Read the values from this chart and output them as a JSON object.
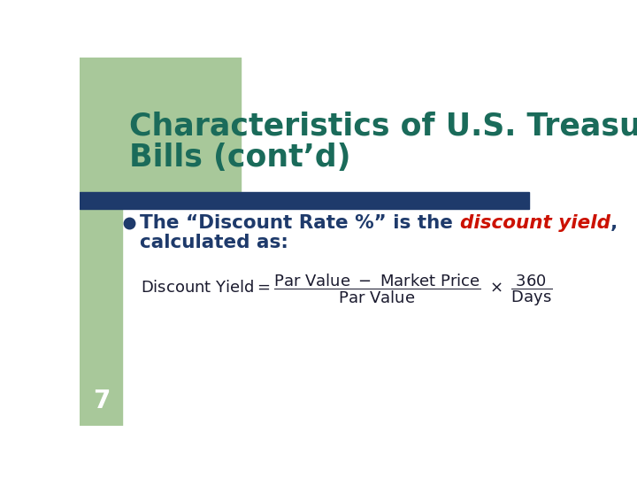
{
  "bg_color": "#ffffff",
  "green_bar_color": "#a8c89a",
  "title_color": "#1a6b5a",
  "title_line1": "Characteristics of U.S. Treasury",
  "title_line2": "Bills (cont’d)",
  "divider_color": "#1e3a6b",
  "bullet_color": "#1e3a6b",
  "bullet_text_color": "#1e3a6b",
  "highlight_color": "#cc1100",
  "page_number": "7",
  "formula_color": "#1a1a2e"
}
